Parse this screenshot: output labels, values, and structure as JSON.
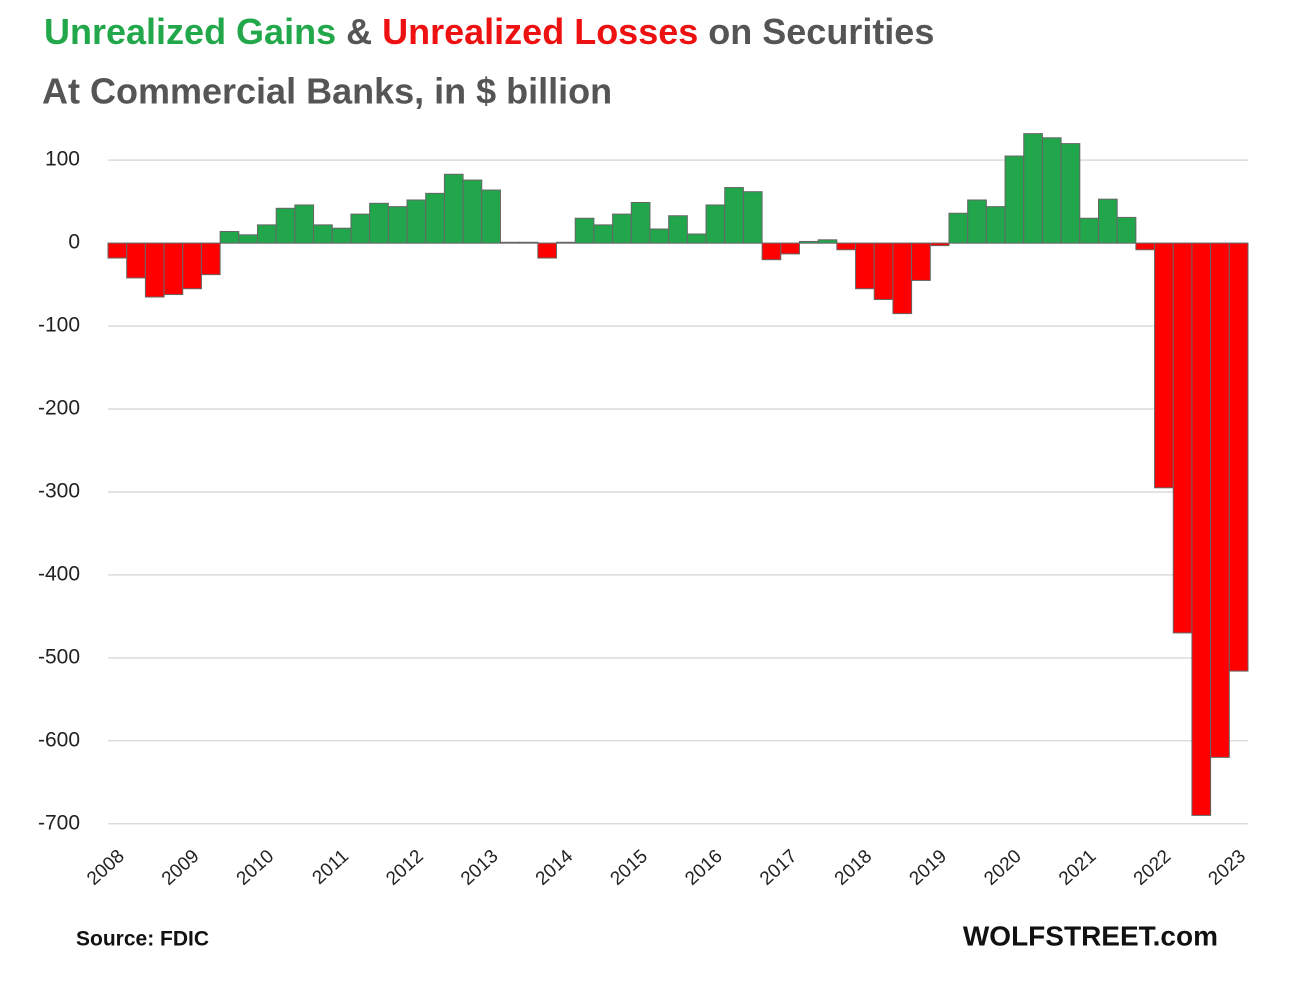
{
  "chart_data": {
    "type": "bar",
    "title": [
      "Unrealized Gains",
      "&",
      "Unrealized Losses",
      "on Securities"
    ],
    "title_colors": [
      "#22a84a",
      "#555555",
      "#ee1111",
      "#555555"
    ],
    "subtitle": "At Commercial Banks, in $ billion",
    "source": "Source: FDIC",
    "credit": "WOLFSTREET.com",
    "categories": [
      "2008",
      null,
      null,
      null,
      "2009",
      null,
      null,
      null,
      "2010",
      null,
      null,
      null,
      "2011",
      null,
      null,
      null,
      "2012",
      null,
      null,
      null,
      "2013",
      null,
      null,
      null,
      "2014",
      null,
      null,
      null,
      "2015",
      null,
      null,
      null,
      "2016",
      null,
      null,
      null,
      "2017",
      null,
      null,
      null,
      "2018",
      null,
      null,
      null,
      "2019",
      null,
      null,
      null,
      "2020",
      null,
      null,
      null,
      "2021",
      null,
      null,
      null,
      "2022",
      null,
      null,
      null,
      "2023"
    ],
    "values": [
      -18,
      -42,
      -65,
      -62,
      -55,
      -38,
      14,
      10,
      22,
      42,
      46,
      22,
      18,
      35,
      48,
      44,
      52,
      60,
      83,
      76,
      64,
      1,
      1,
      -18,
      1,
      30,
      22,
      35,
      49,
      17,
      33,
      11,
      46,
      67,
      62,
      -20,
      -13,
      2,
      4,
      -8,
      -55,
      -68,
      -85,
      -45,
      -3,
      36,
      52,
      44,
      105,
      132,
      127,
      120,
      30,
      53,
      31,
      -8,
      -295,
      -470,
      -690,
      -620,
      -516
    ],
    "positive_color": "#21a64b",
    "negative_color": "#ff0000",
    "ylim": [
      -710,
      140
    ],
    "yticks": [
      100,
      0,
      -100,
      -200,
      -300,
      -400,
      -500,
      -600,
      -700
    ],
    "grid": true
  }
}
